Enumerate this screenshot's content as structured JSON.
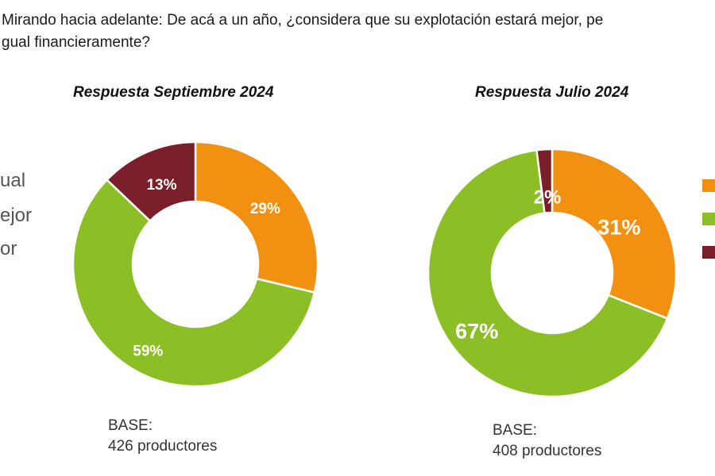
{
  "question": {
    "line1": "Mirando hacia adelante: De acá a un año, ¿considera que su explotación  estará mejor, pe",
    "line2": "gual financieramente?"
  },
  "legend": {
    "items": [
      {
        "label": "ual",
        "color": "#f29111"
      },
      {
        "label": "ejor",
        "color": "#8cbf26"
      },
      {
        "label": "or",
        "color": "#7a1e2a"
      }
    ]
  },
  "chart_data": [
    {
      "type": "pie",
      "title": "Respuesta Septiembre 2024",
      "slices": [
        {
          "value": 29,
          "label": "29%",
          "color": "#f29111"
        },
        {
          "value": 59,
          "label": "59%",
          "color": "#8cbf26"
        },
        {
          "value": 13,
          "label": "13%",
          "color": "#7a1e2a"
        }
      ],
      "base_label": "BASE:",
      "base_value": "426 productores"
    },
    {
      "type": "pie",
      "title": "Respuesta Julio 2024",
      "slices": [
        {
          "value": 31,
          "label": "31%",
          "color": "#f29111"
        },
        {
          "value": 67,
          "label": "67%",
          "color": "#8cbf26"
        },
        {
          "value": 2,
          "label": "2%",
          "color": "#7a1e2a"
        }
      ],
      "base_label": "BASE:",
      "base_value": "408 productores"
    }
  ]
}
